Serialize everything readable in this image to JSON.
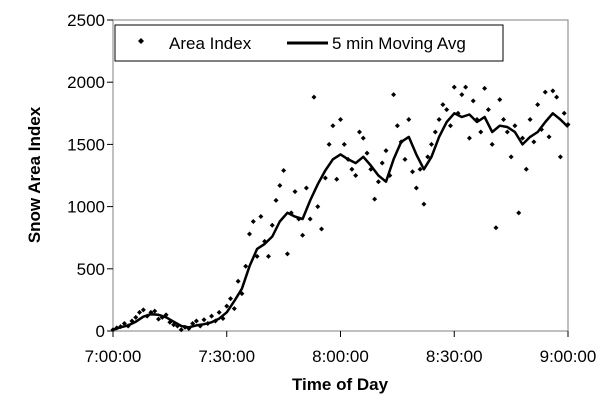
{
  "chart_data": {
    "type": "scatter",
    "title": "",
    "xlabel": "Time of Day",
    "ylabel": "Snow Area Index",
    "xlim": [
      "7:00:00",
      "9:00:00"
    ],
    "ylim": [
      0,
      2500
    ],
    "x_ticks": [
      "7:00:00",
      "7:30:00",
      "8:00:00",
      "8:30:00",
      "9:00:00"
    ],
    "y_ticks": [
      0,
      500,
      1000,
      1500,
      2000,
      2500
    ],
    "grid": false,
    "legend_position": "top-left",
    "series": [
      {
        "name": "Area Index",
        "style": "markers",
        "color": "#000000",
        "points": [
          [
            "7:00:00",
            10
          ],
          [
            "7:01:00",
            25
          ],
          [
            "7:02:00",
            35
          ],
          [
            "7:03:00",
            60
          ],
          [
            "7:04:00",
            40
          ],
          [
            "7:05:00",
            80
          ],
          [
            "7:06:00",
            110
          ],
          [
            "7:07:00",
            150
          ],
          [
            "7:08:00",
            170
          ],
          [
            "7:09:00",
            120
          ],
          [
            "7:10:00",
            150
          ],
          [
            "7:11:00",
            160
          ],
          [
            "7:12:00",
            95
          ],
          [
            "7:13:00",
            110
          ],
          [
            "7:14:00",
            130
          ],
          [
            "7:15:00",
            70
          ],
          [
            "7:16:00",
            50
          ],
          [
            "7:17:00",
            40
          ],
          [
            "7:18:00",
            10
          ],
          [
            "7:19:00",
            30
          ],
          [
            "7:20:00",
            20
          ],
          [
            "7:21:00",
            60
          ],
          [
            "7:22:00",
            80
          ],
          [
            "7:23:00",
            40
          ],
          [
            "7:24:00",
            90
          ],
          [
            "7:25:00",
            60
          ],
          [
            "7:26:00",
            120
          ],
          [
            "7:27:00",
            80
          ],
          [
            "7:28:00",
            150
          ],
          [
            "7:29:00",
            100
          ],
          [
            "7:30:00",
            200
          ],
          [
            "7:31:00",
            260
          ],
          [
            "7:32:00",
            180
          ],
          [
            "7:33:00",
            400
          ],
          [
            "7:34:00",
            300
          ],
          [
            "7:35:00",
            520
          ],
          [
            "7:36:00",
            780
          ],
          [
            "7:37:00",
            880
          ],
          [
            "7:38:00",
            600
          ],
          [
            "7:39:00",
            920
          ],
          [
            "7:40:00",
            720
          ],
          [
            "7:41:00",
            600
          ],
          [
            "7:42:00",
            850
          ],
          [
            "7:43:00",
            1050
          ],
          [
            "7:44:00",
            1170
          ],
          [
            "7:45:00",
            1290
          ],
          [
            "7:46:00",
            620
          ],
          [
            "7:47:00",
            950
          ],
          [
            "7:48:00",
            1120
          ],
          [
            "7:49:00",
            900
          ],
          [
            "7:50:00",
            770
          ],
          [
            "7:51:00",
            1150
          ],
          [
            "7:52:00",
            900
          ],
          [
            "7:53:00",
            1880
          ],
          [
            "7:54:00",
            1000
          ],
          [
            "7:55:00",
            820
          ],
          [
            "7:56:00",
            1230
          ],
          [
            "7:57:00",
            1500
          ],
          [
            "7:58:00",
            1650
          ],
          [
            "7:59:00",
            1220
          ],
          [
            "8:00:00",
            1700
          ],
          [
            "8:01:00",
            1500
          ],
          [
            "8:02:00",
            1380
          ],
          [
            "8:03:00",
            1300
          ],
          [
            "8:04:00",
            1250
          ],
          [
            "8:05:00",
            1600
          ],
          [
            "8:06:00",
            1550
          ],
          [
            "8:07:00",
            1430
          ],
          [
            "8:08:00",
            1300
          ],
          [
            "8:09:00",
            1060
          ],
          [
            "8:10:00",
            1200
          ],
          [
            "8:11:00",
            1350
          ],
          [
            "8:12:00",
            1450
          ],
          [
            "8:13:00",
            1250
          ],
          [
            "8:14:00",
            1900
          ],
          [
            "8:15:00",
            1650
          ],
          [
            "8:16:00",
            1520
          ],
          [
            "8:17:00",
            1380
          ],
          [
            "8:18:00",
            1700
          ],
          [
            "8:19:00",
            1280
          ],
          [
            "8:20:00",
            1150
          ],
          [
            "8:21:00",
            1300
          ],
          [
            "8:22:00",
            1020
          ],
          [
            "8:23:00",
            1400
          ],
          [
            "8:24:00",
            1500
          ],
          [
            "8:25:00",
            1600
          ],
          [
            "8:26:00",
            1700
          ],
          [
            "8:27:00",
            1820
          ],
          [
            "8:28:00",
            1780
          ],
          [
            "8:29:00",
            1650
          ],
          [
            "8:30:00",
            1960
          ],
          [
            "8:31:00",
            1750
          ],
          [
            "8:32:00",
            1900
          ],
          [
            "8:33:00",
            1960
          ],
          [
            "8:34:00",
            1550
          ],
          [
            "8:35:00",
            1850
          ],
          [
            "8:36:00",
            1700
          ],
          [
            "8:37:00",
            1600
          ],
          [
            "8:38:00",
            1950
          ],
          [
            "8:39:00",
            1780
          ],
          [
            "8:40:00",
            1500
          ],
          [
            "8:41:00",
            830
          ],
          [
            "8:42:00",
            1860
          ],
          [
            "8:43:00",
            1700
          ],
          [
            "8:44:00",
            1600
          ],
          [
            "8:45:00",
            1400
          ],
          [
            "8:46:00",
            1650
          ],
          [
            "8:47:00",
            950
          ],
          [
            "8:48:00",
            1550
          ],
          [
            "8:49:00",
            1300
          ],
          [
            "8:50:00",
            1700
          ],
          [
            "8:51:00",
            1520
          ],
          [
            "8:52:00",
            1820
          ],
          [
            "8:53:00",
            1620
          ],
          [
            "8:54:00",
            1920
          ],
          [
            "8:55:00",
            1560
          ],
          [
            "8:56:00",
            1930
          ],
          [
            "8:57:00",
            1880
          ],
          [
            "8:58:00",
            1400
          ],
          [
            "8:59:00",
            1750
          ],
          [
            "9:00:00",
            1660
          ]
        ]
      },
      {
        "name": "5 min Moving Avg",
        "style": "line",
        "color": "#000000",
        "points": [
          [
            "7:00:00",
            10
          ],
          [
            "7:02:00",
            30
          ],
          [
            "7:04:00",
            45
          ],
          [
            "7:06:00",
            75
          ],
          [
            "7:08:00",
            115
          ],
          [
            "7:10:00",
            135
          ],
          [
            "7:12:00",
            130
          ],
          [
            "7:14:00",
            110
          ],
          [
            "7:16:00",
            75
          ],
          [
            "7:18:00",
            40
          ],
          [
            "7:20:00",
            30
          ],
          [
            "7:22:00",
            45
          ],
          [
            "7:24:00",
            55
          ],
          [
            "7:26:00",
            70
          ],
          [
            "7:28:00",
            100
          ],
          [
            "7:30:00",
            150
          ],
          [
            "7:32:00",
            240
          ],
          [
            "7:34:00",
            340
          ],
          [
            "7:36:00",
            520
          ],
          [
            "7:38:00",
            660
          ],
          [
            "7:40:00",
            700
          ],
          [
            "7:42:00",
            760
          ],
          [
            "7:44:00",
            880
          ],
          [
            "7:46:00",
            950
          ],
          [
            "7:48:00",
            920
          ],
          [
            "7:50:00",
            900
          ],
          [
            "7:52:00",
            1050
          ],
          [
            "7:54:00",
            1180
          ],
          [
            "7:56:00",
            1290
          ],
          [
            "7:58:00",
            1380
          ],
          [
            "8:00:00",
            1420
          ],
          [
            "8:02:00",
            1380
          ],
          [
            "8:04:00",
            1350
          ],
          [
            "8:06:00",
            1400
          ],
          [
            "8:08:00",
            1330
          ],
          [
            "8:10:00",
            1250
          ],
          [
            "8:12:00",
            1200
          ],
          [
            "8:14:00",
            1380
          ],
          [
            "8:16:00",
            1520
          ],
          [
            "8:18:00",
            1560
          ],
          [
            "8:20:00",
            1420
          ],
          [
            "8:22:00",
            1300
          ],
          [
            "8:24:00",
            1400
          ],
          [
            "8:26:00",
            1560
          ],
          [
            "8:28:00",
            1680
          ],
          [
            "8:30:00",
            1750
          ],
          [
            "8:32:00",
            1720
          ],
          [
            "8:34:00",
            1740
          ],
          [
            "8:36:00",
            1680
          ],
          [
            "8:38:00",
            1720
          ],
          [
            "8:40:00",
            1600
          ],
          [
            "8:42:00",
            1650
          ],
          [
            "8:44:00",
            1640
          ],
          [
            "8:46:00",
            1600
          ],
          [
            "8:48:00",
            1500
          ],
          [
            "8:50:00",
            1560
          ],
          [
            "8:52:00",
            1600
          ],
          [
            "8:54:00",
            1680
          ],
          [
            "8:56:00",
            1750
          ],
          [
            "8:58:00",
            1700
          ],
          [
            "9:00:00",
            1640
          ]
        ]
      }
    ]
  }
}
